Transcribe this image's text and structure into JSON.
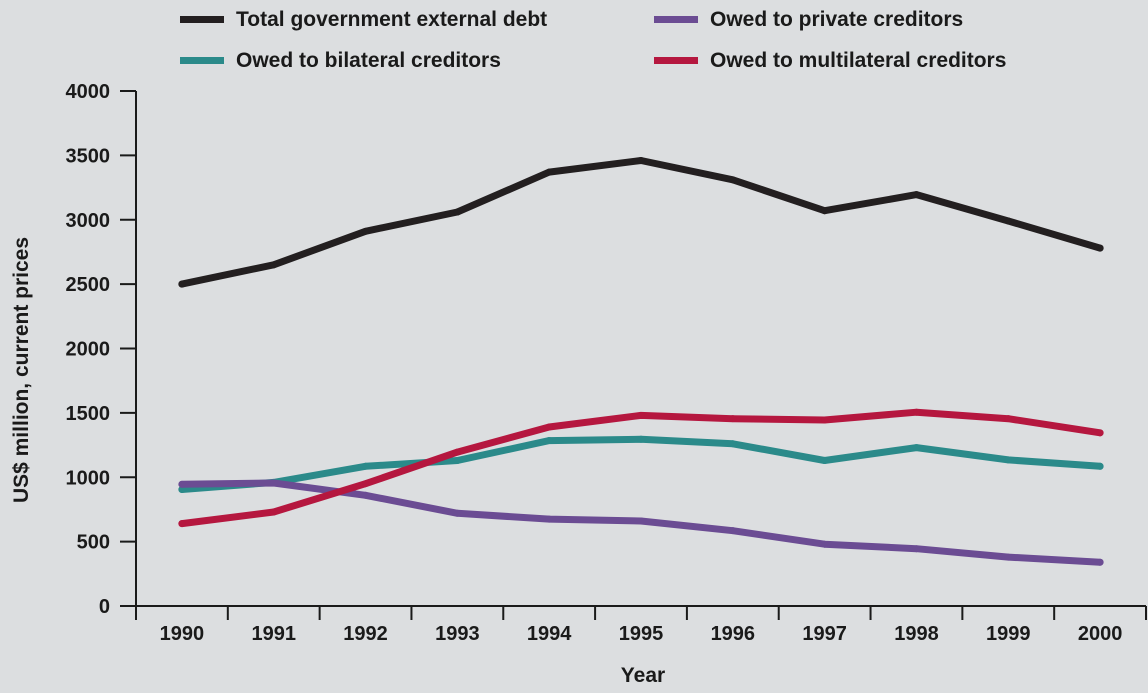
{
  "chart_data": {
    "type": "line",
    "title": "",
    "xlabel": "Year",
    "ylabel": "US$ million, current prices",
    "categories": [
      "1990",
      "1991",
      "1992",
      "1993",
      "1994",
      "1995",
      "1996",
      "1997",
      "1998",
      "1999",
      "2000"
    ],
    "ylim": [
      0,
      4000
    ],
    "yticks": [
      "0",
      "500",
      "1000",
      "1500",
      "2000",
      "2500",
      "3000",
      "3500",
      "4000"
    ],
    "grid": false,
    "legend_position": "top",
    "series": [
      {
        "name": "Total government external debt",
        "color": "#231f20",
        "values": [
          2500,
          2650,
          2910,
          3060,
          3370,
          3460,
          3310,
          3070,
          3195,
          2990,
          2780
        ]
      },
      {
        "name": "Owed to private creditors",
        "color": "#6b4c93",
        "values": [
          945,
          955,
          860,
          720,
          675,
          660,
          585,
          480,
          445,
          380,
          340
        ]
      },
      {
        "name": "Owed to bilateral creditors",
        "color": "#2b8a8a",
        "values": [
          905,
          960,
          1085,
          1130,
          1285,
          1295,
          1260,
          1130,
          1230,
          1135,
          1085
        ]
      },
      {
        "name": "Owed to multilateral creditors",
        "color": "#b5173f",
        "values": [
          640,
          730,
          950,
          1195,
          1390,
          1480,
          1455,
          1445,
          1505,
          1455,
          1345
        ]
      }
    ]
  }
}
